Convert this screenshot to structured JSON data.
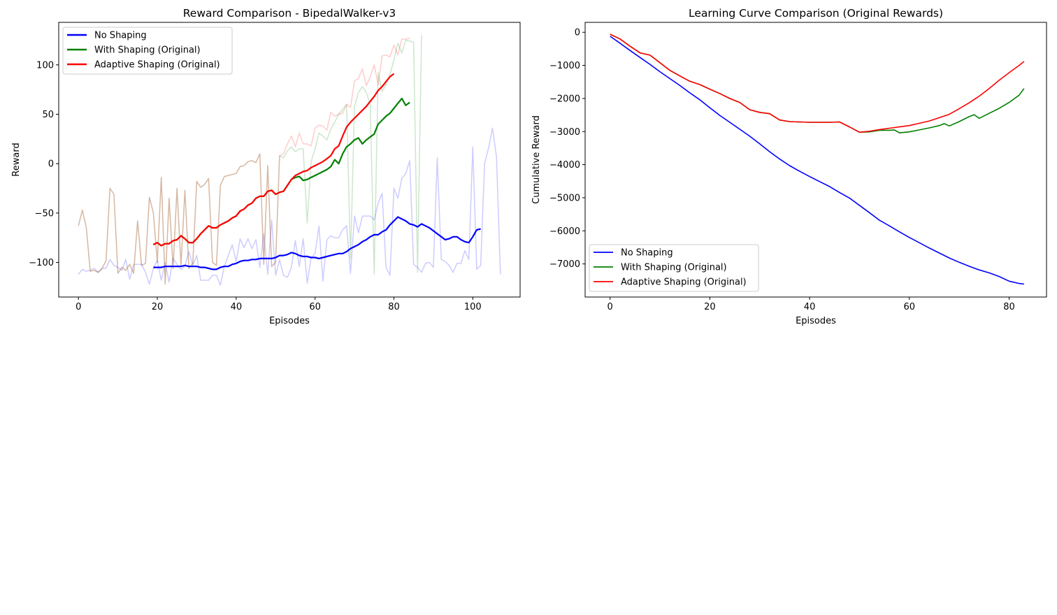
{
  "chart_data": [
    {
      "type": "line",
      "title": "Reward Comparison - BipedalWalker-v3",
      "xlabel": "Episodes",
      "ylabel": "Reward",
      "xlim": [
        -5,
        112
      ],
      "ylim": [
        -135,
        143
      ],
      "xticks": [
        0,
        20,
        40,
        60,
        80,
        100
      ],
      "yticks": [
        -100,
        -50,
        0,
        50,
        100
      ],
      "xtick_labels": [
        "0",
        "20",
        "40",
        "60",
        "80",
        "100"
      ],
      "ytick_labels": [
        "−100",
        "−50",
        "0",
        "50",
        "100"
      ],
      "grid": false,
      "legend_position": "top-left",
      "series": [
        {
          "name": "No Shaping",
          "color": "#0000ff",
          "raw_x_start": 0,
          "raw": [
            -112,
            -107,
            -109,
            -108,
            -106,
            -110,
            -106,
            -106,
            -97,
            -103,
            -105,
            -108,
            -97,
            -117,
            -102,
            -102,
            -102,
            -110,
            -122,
            -106,
            -98,
            -118,
            -100,
            -120,
            -96,
            -102,
            -107,
            -104,
            -89,
            -103,
            -93,
            -118,
            -118,
            -118,
            -113,
            -113,
            -123,
            -104,
            -93,
            -82,
            -99,
            -76,
            -85,
            -76,
            -86,
            -77,
            -105,
            -71,
            -112,
            -57,
            -113,
            -97,
            -113,
            -115,
            -105,
            -78,
            -104,
            -76,
            -121,
            -95,
            -91,
            -63,
            -119,
            -77,
            -73,
            -75,
            -75,
            -67,
            -63,
            -111,
            -53,
            -70,
            -53,
            -53,
            -53,
            -57,
            -40,
            -30,
            -105,
            -113,
            -25,
            -35,
            -15,
            -10,
            3,
            -102,
            -105,
            -110,
            -101,
            -100,
            -105,
            6,
            -97,
            -99,
            -103,
            -110,
            -101,
            -101,
            -88,
            -97,
            17,
            -107,
            -103,
            0,
            16,
            36,
            7,
            -112
          ],
          "avg_x_start": 19,
          "avg": [
            -105,
            -105,
            -105,
            -104,
            -104,
            -104,
            -104,
            -104,
            -103,
            -104,
            -104,
            -104,
            -105,
            -105,
            -106,
            -107,
            -107,
            -105,
            -104,
            -104,
            -102,
            -101,
            -99,
            -98,
            -98,
            -97,
            -97,
            -96,
            -96,
            -96,
            -96,
            -95,
            -93,
            -93,
            -92,
            -90,
            -91,
            -93,
            -94,
            -94,
            -95,
            -95,
            -96,
            -95,
            -94,
            -93,
            -92,
            -91,
            -91,
            -89,
            -86,
            -84,
            -82,
            -79,
            -77,
            -74,
            -72,
            -72,
            -69,
            -67,
            -62,
            -58,
            -54,
            -56,
            -58,
            -61,
            -62,
            -64,
            -61,
            -63,
            -65,
            -68,
            -71,
            -74,
            -77,
            -76,
            -74,
            -74,
            -77,
            -79,
            -80,
            -74,
            -67,
            -66
          ]
        },
        {
          "name": "With Shaping (Original)",
          "color": "#008000",
          "raw_x_start": 0,
          "raw": [
            -63,
            -47,
            -65,
            -109,
            -108,
            -110,
            -106,
            -98,
            -25,
            -31,
            -111,
            -105,
            -108,
            -102,
            -111,
            -58,
            -103,
            -101,
            -34,
            -50,
            -100,
            -14,
            -122,
            -35,
            -106,
            -25,
            -103,
            -27,
            -106,
            -101,
            -18,
            -24,
            -21,
            -15,
            -100,
            -103,
            -22,
            -13,
            -12,
            -11,
            -10,
            -3,
            -2,
            2,
            3,
            1,
            10,
            -102,
            -2,
            -104,
            -100,
            8,
            6,
            13,
            17,
            12,
            15,
            15,
            -60,
            2,
            15,
            31,
            28,
            24,
            35,
            42,
            50,
            55,
            60,
            -96,
            58,
            72,
            78,
            72,
            60,
            -112,
            92,
            73,
            80,
            90,
            105,
            122,
            112,
            125,
            124,
            123,
            -110,
            130
          ],
          "avg_x_start": 19,
          "avg": [
            -82,
            -80,
            -83,
            -81,
            -81,
            -78,
            -77,
            -73,
            -76,
            -80,
            -80,
            -76,
            -71,
            -67,
            -63,
            -65,
            -65,
            -62,
            -60,
            -58,
            -55,
            -53,
            -48,
            -46,
            -42,
            -40,
            -35,
            -33,
            -33,
            -28,
            -27,
            -31,
            -29,
            -28,
            -22,
            -16,
            -14,
            -13,
            -17,
            -16,
            -14,
            -12,
            -10,
            -8,
            -6,
            -3,
            4,
            0,
            10,
            17,
            20,
            24,
            26,
            20,
            24,
            27,
            30,
            40,
            44,
            48,
            51,
            56,
            61,
            66,
            59,
            62
          ]
        },
        {
          "name": "Adaptive Shaping (Original)",
          "color": "#ff0000",
          "raw_x_start": 0,
          "raw": [
            -63,
            -47,
            -65,
            -109,
            -108,
            -110,
            -106,
            -98,
            -25,
            -31,
            -111,
            -105,
            -108,
            -102,
            -111,
            -58,
            -103,
            -101,
            -34,
            -50,
            -100,
            -14,
            -122,
            -35,
            -106,
            -25,
            -103,
            -27,
            -106,
            -101,
            -18,
            -24,
            -21,
            -15,
            -100,
            -103,
            -22,
            -13,
            -12,
            -11,
            -10,
            -3,
            -2,
            2,
            3,
            1,
            10,
            -102,
            -2,
            -104,
            -100,
            8,
            10,
            20,
            28,
            17,
            31,
            20,
            20,
            18,
            36,
            39,
            38,
            34,
            52,
            48,
            50,
            51,
            60,
            57,
            84,
            86,
            96,
            79,
            88,
            100,
            80,
            109,
            110,
            108,
            120,
            110,
            126,
            126,
            127
          ],
          "avg_x_start": 19,
          "avg": [
            -82,
            -80,
            -83,
            -81,
            -81,
            -78,
            -77,
            -73,
            -76,
            -80,
            -80,
            -76,
            -71,
            -67,
            -63,
            -65,
            -65,
            -62,
            -60,
            -58,
            -55,
            -53,
            -48,
            -46,
            -42,
            -40,
            -35,
            -33,
            -33,
            -28,
            -27,
            -31,
            -29,
            -28,
            -22,
            -16,
            -12,
            -10,
            -8,
            -7,
            -4,
            -2,
            0,
            2,
            5,
            8,
            15,
            18,
            28,
            37,
            42,
            46,
            50,
            54,
            58,
            63,
            68,
            74,
            78,
            83,
            88,
            91
          ]
        }
      ],
      "legend": {
        "entries": [
          "No Shaping",
          "With Shaping (Original)",
          "Adaptive Shaping (Original)"
        ]
      }
    },
    {
      "type": "line",
      "title": "Learning Curve Comparison (Original Rewards)",
      "xlabel": "Episodes",
      "ylabel": "Cumulative Reward",
      "xlim": [
        -5,
        87.5
      ],
      "ylim": [
        -8000,
        300
      ],
      "xticks": [
        0,
        20,
        40,
        60,
        80
      ],
      "yticks": [
        0,
        -1000,
        -2000,
        -3000,
        -4000,
        -5000,
        -6000,
        -7000
      ],
      "xtick_labels": [
        "0",
        "20",
        "40",
        "60",
        "80"
      ],
      "ytick_labels": [
        "0",
        "−1000",
        "−2000",
        "−3000",
        "−4000",
        "−5000",
        "−6000",
        "−7000"
      ],
      "grid": false,
      "legend_position": "bottom-left",
      "series": [
        {
          "name": "No Shaping",
          "color": "#0000ff",
          "x": [
            0,
            2,
            4,
            6,
            8,
            10,
            12,
            14,
            16,
            18,
            20,
            22,
            24,
            26,
            28,
            30,
            32,
            34,
            36,
            38,
            40,
            42,
            44,
            46,
            48,
            50,
            52,
            54,
            56,
            58,
            60,
            62,
            64,
            66,
            68,
            70,
            72,
            74,
            76,
            78,
            80,
            82,
            83
          ],
          "values": [
            -120,
            -330,
            -550,
            -760,
            -970,
            -1190,
            -1400,
            -1610,
            -1830,
            -2040,
            -2280,
            -2510,
            -2720,
            -2930,
            -3140,
            -3370,
            -3610,
            -3830,
            -4030,
            -4200,
            -4360,
            -4510,
            -4660,
            -4840,
            -5010,
            -5230,
            -5450,
            -5680,
            -5850,
            -6030,
            -6200,
            -6360,
            -6520,
            -6670,
            -6820,
            -6950,
            -7070,
            -7180,
            -7270,
            -7380,
            -7520,
            -7590,
            -7610
          ]
        },
        {
          "name": "With Shaping (Original)",
          "color": "#008000",
          "x": [
            0,
            2,
            4,
            6,
            8,
            10,
            12,
            14,
            16,
            18,
            20,
            22,
            24,
            26,
            28,
            30,
            32,
            34,
            36,
            38,
            40,
            42,
            44,
            46,
            48,
            50,
            52,
            54,
            56,
            57,
            58,
            60,
            62,
            64,
            66,
            67,
            68,
            70,
            72,
            73,
            74,
            76,
            78,
            80,
            82,
            83
          ],
          "values": [
            -60,
            -200,
            -420,
            -620,
            -690,
            -920,
            -1150,
            -1320,
            -1480,
            -1580,
            -1720,
            -1850,
            -2000,
            -2120,
            -2340,
            -2420,
            -2460,
            -2650,
            -2700,
            -2710,
            -2720,
            -2720,
            -2720,
            -2710,
            -2860,
            -3020,
            -3010,
            -2960,
            -2960,
            -2950,
            -3040,
            -3010,
            -2950,
            -2890,
            -2820,
            -2760,
            -2830,
            -2700,
            -2550,
            -2490,
            -2600,
            -2450,
            -2300,
            -2120,
            -1900,
            -1700
          ]
        },
        {
          "name": "Adaptive Shaping (Original)",
          "color": "#ff0000",
          "x": [
            0,
            2,
            4,
            6,
            8,
            10,
            12,
            14,
            16,
            18,
            20,
            22,
            24,
            26,
            28,
            30,
            32,
            34,
            36,
            38,
            40,
            42,
            44,
            46,
            48,
            50,
            52,
            54,
            56,
            58,
            60,
            62,
            64,
            66,
            68,
            70,
            72,
            74,
            76,
            78,
            80,
            82,
            83
          ],
          "values": [
            -60,
            -200,
            -420,
            -620,
            -690,
            -920,
            -1150,
            -1320,
            -1480,
            -1580,
            -1720,
            -1850,
            -2000,
            -2120,
            -2340,
            -2420,
            -2460,
            -2650,
            -2700,
            -2710,
            -2720,
            -2720,
            -2720,
            -2710,
            -2860,
            -3020,
            -2990,
            -2940,
            -2900,
            -2860,
            -2820,
            -2750,
            -2680,
            -2580,
            -2480,
            -2310,
            -2130,
            -1930,
            -1700,
            -1450,
            -1220,
            -1000,
            -880
          ]
        }
      ],
      "legend": {
        "entries": [
          "No Shaping",
          "With Shaping (Original)",
          "Adaptive Shaping (Original)"
        ]
      }
    }
  ]
}
